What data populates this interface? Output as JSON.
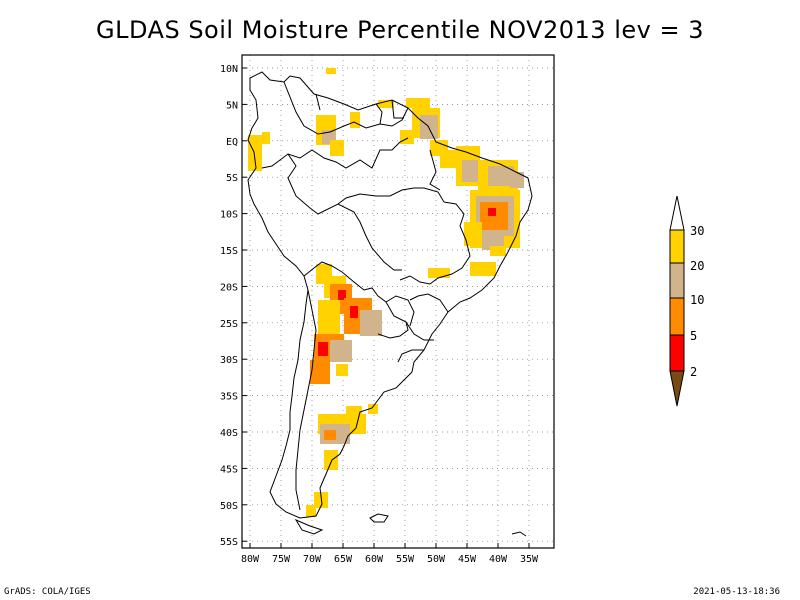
{
  "title": "GLDAS Soil Moisture Percentile NOV2013 lev = 3",
  "map": {
    "region": "South America",
    "lon_range": [
      -81,
      -30
    ],
    "lat_range": [
      -56,
      11
    ],
    "grid": "dotted",
    "lat_labels": [
      "10N",
      "5N",
      "EQ",
      "5S",
      "10S",
      "15S",
      "20S",
      "25S",
      "30S",
      "35S",
      "40S",
      "45S",
      "50S",
      "55S"
    ],
    "lon_labels": [
      "80W",
      "75W",
      "70W",
      "65W",
      "60W",
      "55W",
      "50W",
      "45W",
      "40W",
      "35W"
    ]
  },
  "legend": {
    "placement": "right",
    "levels": [
      "2",
      "5",
      "10",
      "20",
      "30"
    ],
    "colors": {
      "below_2": "#7a4a14",
      "2_5": "#ff0000",
      "5_10": "#ff8c00",
      "10_20": "#d2b48c",
      "20_30": "#ffd200",
      "above_30": "#ffffff"
    }
  },
  "footer": {
    "left": "GrADS: COLA/IGES",
    "right": "2021-05-13-18:36"
  }
}
